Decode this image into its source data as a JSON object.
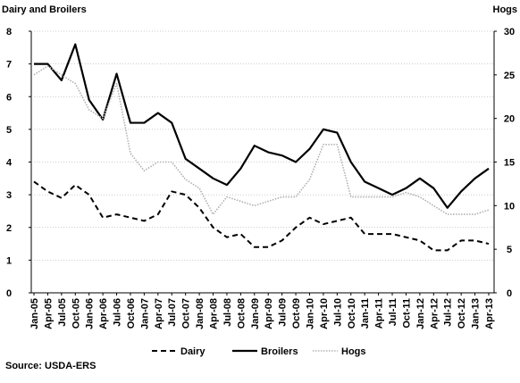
{
  "chart_data": {
    "type": "line",
    "title": "Dairy and Broilers",
    "y2_label": "Hogs",
    "source": "Source: USDA-ERS",
    "categories": [
      "Jan-05",
      "Apr-05",
      "Jul-05",
      "Oct-05",
      "Jan-06",
      "Apr-06",
      "Jul-06",
      "Oct-06",
      "Jan-07",
      "Apr-07",
      "Jul-07",
      "Oct-07",
      "Jan-08",
      "Apr-08",
      "Jul-08",
      "Oct-08",
      "Jan-09",
      "Apr-09",
      "Jul-09",
      "Oct-09",
      "Jan-10",
      "Apr-10",
      "Jul-10",
      "Oct-10",
      "Jan-11",
      "Apr-11",
      "Jul-11",
      "Oct-11",
      "Jan-12",
      "Apr-12",
      "Jul-12",
      "Oct-12",
      "Jan-13",
      "Apr-13"
    ],
    "series": [
      {
        "name": "Dairy",
        "color": "#000000",
        "line_style": "dashed",
        "values": [
          3.4,
          3.1,
          2.9,
          3.3,
          3.0,
          2.3,
          2.4,
          2.3,
          2.2,
          2.4,
          3.1,
          3.0,
          2.6,
          2.0,
          1.7,
          1.8,
          1.4,
          1.4,
          1.6,
          2.0,
          2.3,
          2.1,
          2.2,
          2.3,
          1.8,
          1.8,
          1.8,
          1.7,
          1.6,
          1.3,
          1.3,
          1.6,
          1.6,
          1.5
        ]
      },
      {
        "name": "Broilers",
        "color": "#000000",
        "line_style": "solid",
        "values": [
          7.0,
          7.0,
          6.5,
          7.6,
          5.9,
          5.3,
          6.7,
          5.2,
          5.2,
          5.5,
          5.2,
          4.1,
          3.8,
          3.5,
          3.3,
          3.8,
          4.5,
          4.3,
          4.2,
          4.0,
          4.4,
          5.0,
          4.9,
          4.0,
          3.4,
          3.2,
          3.0,
          3.2,
          3.5,
          3.2,
          2.6,
          3.1,
          3.5,
          3.8
        ]
      },
      {
        "name": "Hogs",
        "color": "#b0b0b0",
        "line_style": "dotted",
        "axis": "y2",
        "values": [
          25,
          26,
          25,
          24,
          21,
          20,
          24,
          16,
          14,
          15,
          15,
          13,
          12,
          9,
          11,
          10.5,
          10,
          10.5,
          11,
          11,
          13,
          17,
          17,
          11,
          11,
          11,
          11,
          11.5,
          11,
          10,
          9,
          9,
          9,
          9.5
        ]
      }
    ],
    "ylim": [
      0,
      8
    ],
    "yticks": [
      0,
      1,
      2,
      3,
      4,
      5,
      6,
      7,
      8
    ],
    "y2lim": [
      0,
      30
    ],
    "y2ticks": [
      0,
      5,
      10,
      15,
      20,
      25,
      30
    ],
    "grid": true,
    "legend": "bottom"
  }
}
